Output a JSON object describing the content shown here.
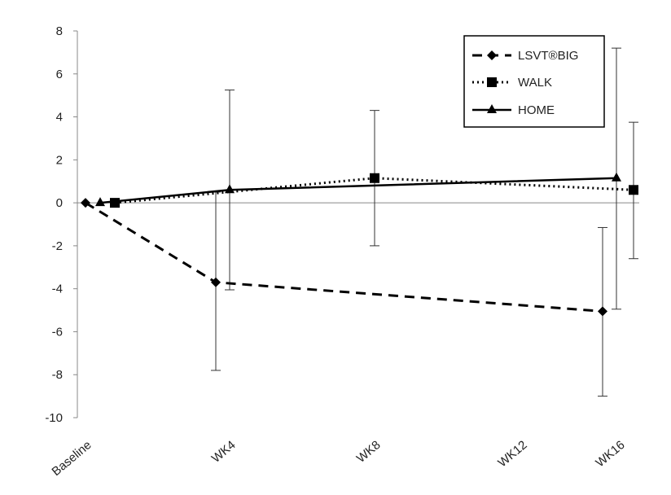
{
  "chart_data": {
    "type": "line",
    "categories": [
      "Baseline",
      "WK4",
      "WK8",
      "WK12",
      "WK16"
    ],
    "ylim": [
      -10,
      8
    ],
    "yticks": [
      "8",
      "6",
      "4",
      "2",
      "0",
      "-2",
      "-4",
      "-6",
      "-8",
      "-10"
    ],
    "grid": false,
    "legend_position": "top-right",
    "series": [
      {
        "name": "LSVT®BIG",
        "line_style": "dashed",
        "marker": "diamond",
        "color": "#000000",
        "points": [
          {
            "category": "Baseline",
            "value": 0,
            "err_low": 0,
            "err_high": 0
          },
          {
            "category": "WK4",
            "value": -3.7,
            "err_low": -7.8,
            "err_high": 0.5
          },
          {
            "category": "WK16",
            "value": -5.05,
            "err_low": -9.0,
            "err_high": -1.15
          }
        ]
      },
      {
        "name": "WALK",
        "line_style": "dotted",
        "marker": "square",
        "color": "#000000",
        "points": [
          {
            "category": "Baseline",
            "value": 0,
            "err_low": 0,
            "err_high": 0
          },
          {
            "category": "WK8",
            "value": 1.15,
            "err_low": -2.0,
            "err_high": 4.3
          },
          {
            "category": "WK16",
            "value": 0.6,
            "err_low": -2.6,
            "err_high": 3.75
          }
        ]
      },
      {
        "name": "HOME",
        "line_style": "solid",
        "marker": "triangle",
        "color": "#000000",
        "points": [
          {
            "category": "Baseline",
            "value": 0,
            "err_low": 0,
            "err_high": 0
          },
          {
            "category": "WK4",
            "value": 0.6,
            "err_low": -4.05,
            "err_high": 5.25
          },
          {
            "category": "WK16",
            "value": 1.15,
            "err_low": -4.95,
            "err_high": 7.2
          }
        ]
      }
    ]
  }
}
